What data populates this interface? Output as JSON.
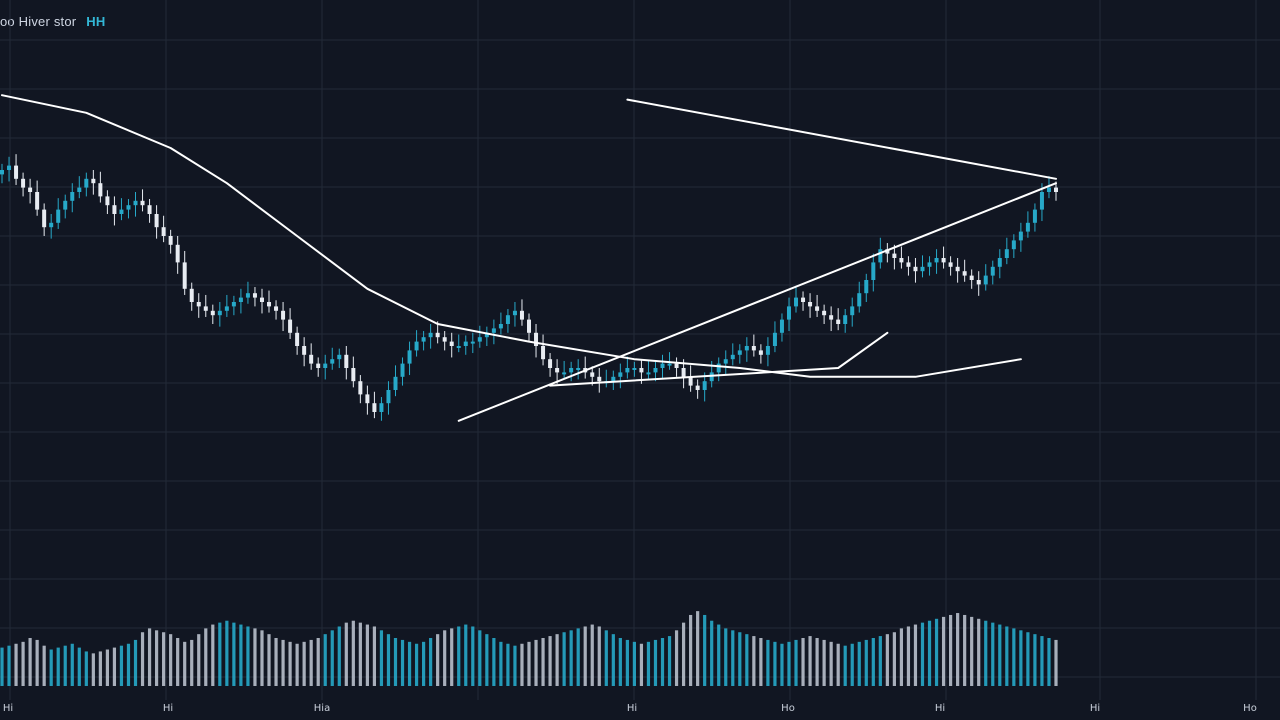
{
  "header": {
    "title": "oo Hiver stor",
    "badge": "HH"
  },
  "colors": {
    "background": "#111622",
    "grid": "#222a38",
    "up": "#27a9c9",
    "down": "#e8ecf2",
    "overlay": "#ffffff",
    "text": "#c9cfda"
  },
  "chart_data": {
    "type": "candlestick",
    "title": "oo Hiver stor",
    "xlabel": "",
    "ylabel": "",
    "grid": true,
    "legend": "none",
    "x_tick_labels": [
      "Hi",
      "Hi",
      "Hia",
      "Hi",
      "Ho",
      "Hi",
      "Hi",
      "Ho",
      "Hi"
    ],
    "ylim": [
      0,
      100
    ],
    "volume_ylim": [
      0,
      100
    ],
    "closes": [
      75,
      76,
      73,
      71,
      70,
      66,
      62,
      63,
      66,
      68,
      70,
      71,
      73,
      72,
      69,
      67,
      65,
      66,
      67,
      68,
      67,
      65,
      62,
      60,
      58,
      54,
      48,
      45,
      44,
      43,
      42,
      43,
      44,
      45,
      46,
      47,
      46,
      45,
      44,
      43,
      41,
      38,
      35,
      33,
      31,
      30,
      31,
      32,
      33,
      30,
      27,
      24,
      22,
      20,
      22,
      25,
      28,
      31,
      34,
      36,
      37,
      38,
      37,
      36,
      35,
      35,
      36,
      36,
      37,
      38,
      39,
      40,
      42,
      43,
      41,
      38,
      35,
      32,
      30,
      29,
      29,
      30,
      30,
      29,
      28,
      27,
      27,
      28,
      29,
      30,
      30,
      29,
      29,
      30,
      31,
      31,
      30,
      28,
      26,
      25,
      27,
      29,
      31,
      32,
      33,
      34,
      35,
      34,
      33,
      35,
      38,
      41,
      44,
      46,
      45,
      44,
      43,
      42,
      41,
      40,
      42,
      44,
      47,
      50,
      54,
      57,
      56,
      55,
      54,
      53,
      52,
      53,
      54,
      55,
      54,
      53,
      52,
      51,
      50,
      49,
      51,
      53,
      55,
      57,
      59,
      61,
      63,
      66,
      70,
      71,
      70
    ],
    "volumes": [
      40,
      42,
      44,
      46,
      50,
      48,
      42,
      38,
      40,
      42,
      44,
      40,
      36,
      34,
      36,
      38,
      40,
      42,
      44,
      48,
      56,
      60,
      58,
      56,
      54,
      50,
      46,
      48,
      54,
      60,
      64,
      66,
      68,
      66,
      64,
      62,
      60,
      58,
      54,
      50,
      48,
      46,
      44,
      46,
      48,
      50,
      54,
      58,
      62,
      66,
      68,
      66,
      64,
      62,
      58,
      54,
      50,
      48,
      46,
      44,
      46,
      50,
      54,
      58,
      60,
      62,
      64,
      62,
      58,
      54,
      50,
      46,
      44,
      42,
      44,
      46,
      48,
      50,
      52,
      54,
      56,
      58,
      60,
      62,
      64,
      62,
      58,
      54,
      50,
      48,
      46,
      44,
      46,
      48,
      50,
      52,
      58,
      66,
      74,
      78,
      74,
      68,
      64,
      60,
      58,
      56,
      54,
      52,
      50,
      48,
      46,
      44,
      46,
      48,
      50,
      52,
      50,
      48,
      46,
      44,
      42,
      44,
      46,
      48,
      50,
      52,
      54,
      56,
      60,
      62,
      64,
      66,
      68,
      70,
      72,
      74,
      76,
      74,
      72,
      70,
      68,
      66,
      64,
      62,
      60,
      58,
      56,
      54,
      52,
      50,
      48
    ],
    "curve_line": [
      [
        0,
        92
      ],
      [
        12,
        88
      ],
      [
        24,
        80
      ],
      [
        32,
        72
      ],
      [
        42,
        60
      ],
      [
        52,
        48
      ],
      [
        62,
        40
      ],
      [
        75,
        36
      ],
      [
        90,
        32
      ],
      [
        105,
        30
      ],
      [
        115,
        28
      ],
      [
        130,
        28
      ],
      [
        145,
        32
      ]
    ],
    "trend_lines": [
      [
        [
          89,
          91
        ],
        [
          150,
          73
        ]
      ],
      [
        [
          65,
          18
        ],
        [
          150,
          72
        ]
      ],
      [
        [
          78,
          26
        ],
        [
          119,
          30
        ],
        [
          126,
          38
        ]
      ]
    ]
  }
}
